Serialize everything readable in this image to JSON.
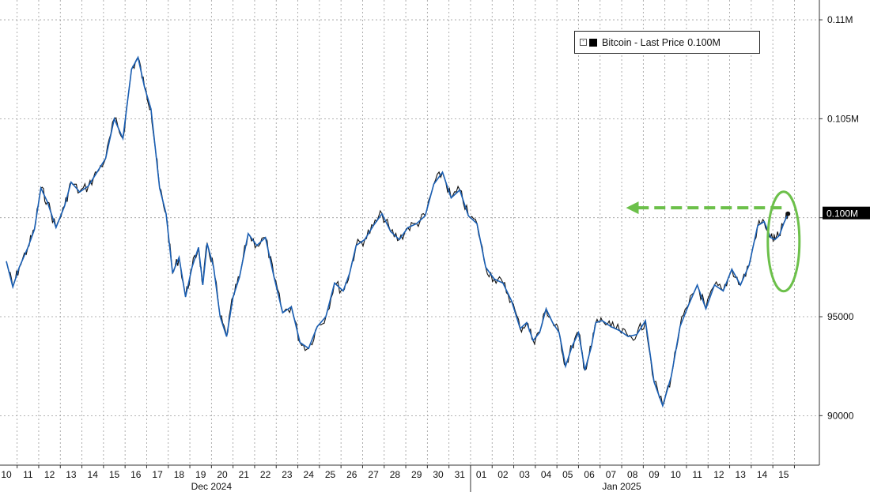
{
  "chart_data": {
    "type": "line",
    "title": "",
    "ylim": [
      87500,
      111000
    ],
    "y_ticks": [
      {
        "value": 90000,
        "label": "90000"
      },
      {
        "value": 95000,
        "label": "95000"
      },
      {
        "value": 100000,
        "label": ""
      },
      {
        "value": 105000,
        "label": "0.105M"
      },
      {
        "value": 110000,
        "label": "0.11M"
      }
    ],
    "x_tick_labels": [
      "10",
      "11",
      "12",
      "13",
      "14",
      "15",
      "16",
      "17",
      "18",
      "19",
      "20",
      "21",
      "22",
      "23",
      "24",
      "25",
      "26",
      "27",
      "28",
      "29",
      "30",
      "31",
      "01",
      "02",
      "03",
      "04",
      "05",
      "06",
      "07",
      "08",
      "09",
      "10",
      "11",
      "12",
      "13",
      "14",
      "15"
    ],
    "x_group_labels": [
      {
        "label": "Dec 2024",
        "after_day_index": 9
      },
      {
        "label": "Jan 2025",
        "after_day_index": 28
      }
    ],
    "series": [
      {
        "name": "Bitcoin - Last Price",
        "color": "#1a5fb4",
        "x": [
          0,
          0.3,
          0.6,
          1.0,
          1.3,
          1.6,
          1.9,
          2.3,
          2.7,
          3.0,
          3.4,
          3.8,
          4.2,
          4.6,
          5.0,
          5.4,
          5.8,
          6.1,
          6.4,
          6.7,
          6.9,
          7.1,
          7.4,
          7.7,
          8.0,
          8.3,
          8.6,
          8.9,
          9.1,
          9.3,
          9.6,
          9.9,
          10.2,
          10.5,
          10.8,
          11.2,
          11.6,
          12.0,
          12.4,
          12.8,
          13.2,
          13.6,
          14.0,
          14.4,
          14.8,
          15.2,
          15.6,
          15.9,
          16.2,
          16.6,
          17.0,
          17.4,
          17.8,
          18.2,
          18.6,
          19.0,
          19.4,
          19.8,
          20.2,
          20.6,
          21.0,
          21.4,
          21.8,
          22.2,
          22.6,
          23.0,
          23.4,
          23.8,
          24.1,
          24.4,
          24.7,
          25.0,
          25.3,
          25.6,
          25.9,
          26.2,
          26.5,
          26.8,
          27.1,
          27.3,
          27.6,
          28.0,
          28.4,
          28.8,
          29.2,
          29.6,
          30.0,
          30.4,
          30.8,
          31.2,
          31.6,
          32.0,
          32.4,
          32.8,
          33.2,
          33.6,
          34.0,
          34.4,
          34.8,
          35.1,
          35.4,
          35.6,
          35.8,
          36.0,
          36.2
        ],
        "values": [
          97800,
          96500,
          97500,
          98500,
          99400,
          101500,
          100800,
          99500,
          100600,
          101800,
          101300,
          101600,
          102300,
          103000,
          105000,
          104000,
          107500,
          108100,
          106600,
          105500,
          103500,
          101500,
          100200,
          97200,
          98000,
          96000,
          97500,
          98500,
          96600,
          98700,
          97500,
          95000,
          94000,
          96000,
          97000,
          99200,
          98600,
          99000,
          97000,
          95200,
          95500,
          93700,
          93400,
          94500,
          95000,
          96700,
          96300,
          97200,
          98600,
          98900,
          99600,
          100200,
          99300,
          98900,
          99500,
          99700,
          100100,
          101700,
          102300,
          101000,
          101400,
          100100,
          99700,
          97500,
          96900,
          96700,
          95800,
          94400,
          94700,
          93800,
          94200,
          95400,
          94700,
          94200,
          92500,
          93500,
          94200,
          92300,
          93500,
          94700,
          94800,
          94500,
          94300,
          94000,
          94100,
          94800,
          91700,
          90500,
          92000,
          94500,
          95600,
          96600,
          95400,
          96600,
          96300,
          97400,
          96600,
          97600,
          99600,
          99800,
          99000,
          98900,
          99100,
          99700,
          100200
        ]
      }
    ],
    "legend": {
      "placement": "top-right",
      "label": "Bitcoin - Last Price",
      "value": "0.100M"
    },
    "last_price_label": "0.100M",
    "annotations": [
      "green dashed arrow from latest price back to Jan 07 level",
      "green ellipse around Jan 15 rally"
    ]
  }
}
